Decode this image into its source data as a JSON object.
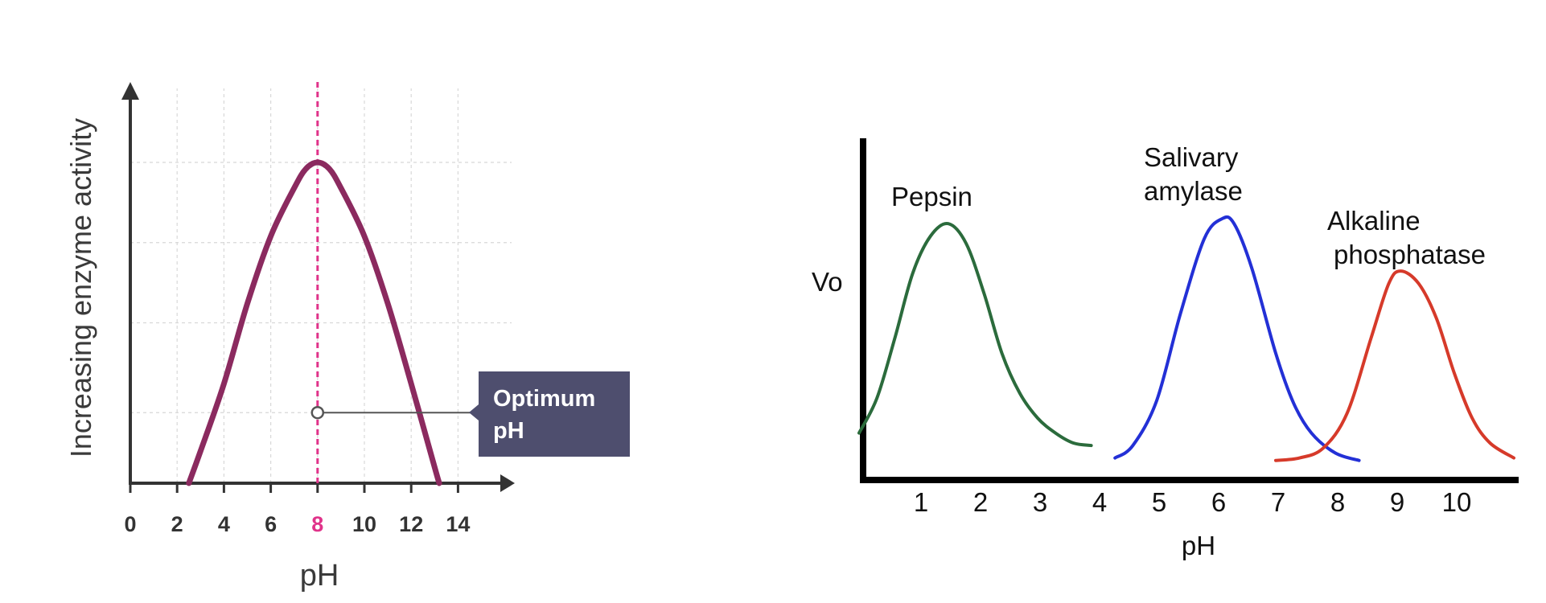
{
  "chart_data": [
    {
      "type": "line",
      "title": "",
      "xlabel": "pH",
      "ylabel": "Increasing enzyme activity",
      "xlim": [
        0,
        15
      ],
      "ylim": [
        0,
        100
      ],
      "x_ticks": [
        "0",
        "2",
        "4",
        "6",
        "8",
        "10",
        "12",
        "14"
      ],
      "x_tick_values": [
        0,
        2,
        4,
        6,
        8,
        10,
        12,
        14
      ],
      "highlight_tick": "8",
      "grid": true,
      "series": [
        {
          "x": [
            2.5,
            3,
            4,
            5,
            6,
            7,
            7.5,
            8,
            8.5,
            9,
            10,
            11,
            12,
            13,
            13.2
          ],
          "y": [
            0,
            10,
            31,
            56,
            77,
            92,
            98,
            100,
            98,
            92,
            77,
            56,
            31,
            5,
            0
          ],
          "color": "#8b2a5f"
        }
      ],
      "optimum": {
        "x": 8,
        "marker_y": 22
      },
      "annotation": "Optimum\npH",
      "annotation_lines": [
        "Optimum",
        "pH"
      ],
      "colors": {
        "curve": "#8b2a5f",
        "optimum_line": "#e0338a",
        "callout": "#4e4e6e",
        "axis": "#333333",
        "grid": "#d8d8d8"
      }
    },
    {
      "type": "line",
      "title": "",
      "xlabel": "pH",
      "ylabel": "Vo",
      "xlim": [
        0,
        11
      ],
      "ylim": [
        0,
        100
      ],
      "x_ticks": [
        "1",
        "2",
        "3",
        "4",
        "5",
        "6",
        "7",
        "8",
        "9",
        "10"
      ],
      "x_tick_values": [
        1,
        2,
        3,
        4,
        5,
        6,
        7,
        8,
        9,
        10
      ],
      "grid": false,
      "series": [
        {
          "name": "Pepsin",
          "label_lines": [
            "Pepsin"
          ],
          "color": "#2b6b3c",
          "x": [
            0,
            0.3,
            0.6,
            0.9,
            1.2,
            1.5,
            1.8,
            2.1,
            2.4,
            2.7,
            3.0,
            3.3,
            3.6,
            3.9
          ],
          "y": [
            14,
            28,
            52,
            78,
            93,
            98,
            90,
            70,
            46,
            30,
            20,
            14,
            10,
            9
          ]
        },
        {
          "name": "Salivary amylase",
          "label_lines": [
            "Salivary",
            "amylase"
          ],
          "color": "#2330d6",
          "x": [
            4.3,
            4.6,
            5.0,
            5.4,
            5.8,
            6.1,
            6.3,
            6.6,
            7.0,
            7.3,
            7.6,
            8.0,
            8.4
          ],
          "y": [
            4,
            9,
            27,
            62,
            92,
            100,
            98,
            80,
            46,
            26,
            14,
            6,
            3
          ]
        },
        {
          "name": "Alkaline phosphatase",
          "label_lines": [
            "Alkaline",
            "phosphatase"
          ],
          "color": "#d63a2a",
          "x": [
            7.0,
            7.4,
            7.8,
            8.2,
            8.6,
            8.9,
            9.1,
            9.4,
            9.7,
            10.0,
            10.3,
            10.6,
            11.0
          ],
          "y": [
            3,
            4,
            8,
            22,
            52,
            74,
            79,
            74,
            60,
            38,
            20,
            10,
            4
          ]
        }
      ],
      "colors": {
        "axis": "#000000"
      }
    }
  ]
}
